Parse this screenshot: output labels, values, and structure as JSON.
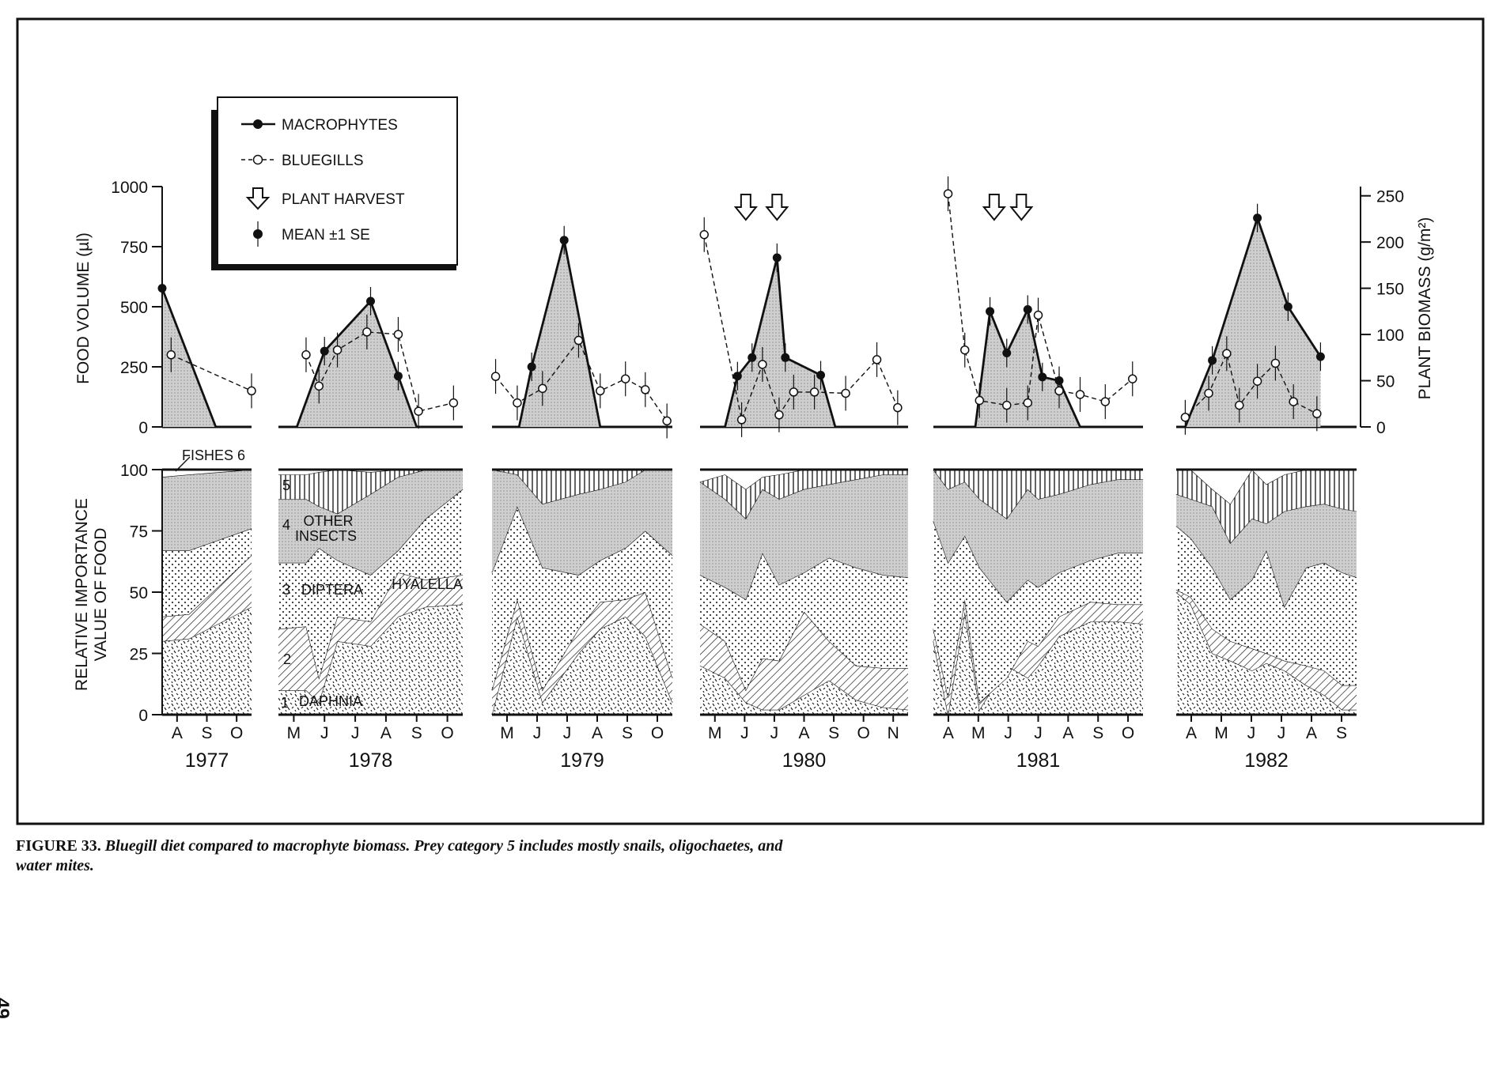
{
  "figure": {
    "caption_label": "FIGURE 33.",
    "caption_text": "Bluegill diet compared to macrophyte biomass. Prey category 5 includes mostly snails, oligochaetes, and water mites.",
    "page_number": "49"
  },
  "chart_data": [
    {
      "type": "line",
      "panel": "upper",
      "left_axis_label": "FOOD VOLUME (µl)",
      "right_axis_label": "PLANT BIOMASS (g/m²)",
      "left_ticks": [
        "0",
        "250",
        "500",
        "750",
        "1000"
      ],
      "right_ticks": [
        "0",
        "50",
        "100",
        "150",
        "200",
        "250"
      ],
      "left_ylim": [
        0,
        1000
      ],
      "right_ylim": [
        0,
        260
      ],
      "legend": {
        "macrophytes": "MACROPHYTES",
        "bluegills": "BLUEGILLS",
        "harvest": "PLANT HARVEST",
        "se": "MEAN ±1 SE"
      },
      "legend_position": "top-left",
      "series_names": [
        "MACROPHYTES",
        "BLUEGILLS"
      ],
      "harvest_marker_note": "arrows show plant harvest dates (1980, 1981)",
      "years": [
        {
          "year": "1977",
          "months": [
            "A",
            "S",
            "O"
          ],
          "macrophytes": [
            [
              0.0,
              150
            ],
            [
              0.6,
              0
            ],
            [
              1.0,
              0
            ]
          ],
          "bluegills": [
            [
              0.1,
              300
            ],
            [
              1.0,
              150
            ]
          ],
          "harvests": []
        },
        {
          "year": "1978",
          "months": [
            "M",
            "J",
            "J",
            "A",
            "S",
            "O"
          ],
          "macrophytes": [
            [
              0.1,
              0
            ],
            [
              0.25,
              82
            ],
            [
              0.5,
              136
            ],
            [
              0.65,
              55
            ],
            [
              0.75,
              0
            ]
          ],
          "bluegills": [
            [
              0.15,
              300
            ],
            [
              0.22,
              170
            ],
            [
              0.32,
              320
            ],
            [
              0.48,
              395
            ],
            [
              0.65,
              385
            ],
            [
              0.76,
              65
            ],
            [
              0.95,
              100
            ]
          ],
          "harvests": []
        },
        {
          "year": "1979",
          "months": [
            "M",
            "J",
            "J",
            "A",
            "S",
            "O"
          ],
          "macrophytes": [
            [
              0.15,
              0
            ],
            [
              0.22,
              65
            ],
            [
              0.4,
              202
            ],
            [
              0.6,
              0
            ]
          ],
          "bluegills": [
            [
              0.02,
              210
            ],
            [
              0.14,
              100
            ],
            [
              0.28,
              160
            ],
            [
              0.48,
              360
            ],
            [
              0.6,
              150
            ],
            [
              0.74,
              200
            ],
            [
              0.85,
              155
            ],
            [
              0.97,
              25
            ]
          ],
          "harvests": []
        },
        {
          "year": "1980",
          "months": [
            "M",
            "J",
            "J",
            "A",
            "S",
            "O",
            "N"
          ],
          "macrophytes": [
            [
              0.12,
              0
            ],
            [
              0.18,
              55
            ],
            [
              0.25,
              75
            ],
            [
              0.37,
              183
            ],
            [
              0.41,
              75
            ],
            [
              0.58,
              56
            ],
            [
              0.65,
              0
            ]
          ],
          "bluegills": [
            [
              0.02,
              800
            ],
            [
              0.2,
              30
            ],
            [
              0.3,
              260
            ],
            [
              0.38,
              50
            ],
            [
              0.45,
              145
            ],
            [
              0.55,
              145
            ],
            [
              0.7,
              140
            ],
            [
              0.85,
              280
            ],
            [
              0.95,
              80
            ]
          ],
          "harvests": [
            0.22,
            0.37
          ]
        },
        {
          "year": "1981",
          "months": [
            "A",
            "M",
            "J",
            "J",
            "A",
            "S",
            "O"
          ],
          "macrophytes": [
            [
              0.2,
              0
            ],
            [
              0.27,
              125
            ],
            [
              0.35,
              80
            ],
            [
              0.45,
              127
            ],
            [
              0.52,
              54
            ],
            [
              0.6,
              50
            ],
            [
              0.7,
              0
            ]
          ],
          "bluegills": [
            [
              0.07,
              970
            ],
            [
              0.15,
              320
            ],
            [
              0.22,
              110
            ],
            [
              0.35,
              90
            ],
            [
              0.45,
              100
            ],
            [
              0.5,
              465
            ],
            [
              0.6,
              150
            ],
            [
              0.7,
              135
            ],
            [
              0.82,
              105
            ],
            [
              0.95,
              200
            ]
          ],
          "harvests": [
            0.29,
            0.42
          ]
        },
        {
          "year": "1982",
          "months": [
            "A",
            "M",
            "J",
            "J",
            "A",
            "S"
          ],
          "macrophytes": [
            [
              0.05,
              0
            ],
            [
              0.2,
              72
            ],
            [
              0.45,
              226
            ],
            [
              0.62,
              130
            ],
            [
              0.8,
              76
            ]
          ],
          "bluegills": [
            [
              0.05,
              40
            ],
            [
              0.18,
              140
            ],
            [
              0.28,
              305
            ],
            [
              0.35,
              90
            ],
            [
              0.45,
              190
            ],
            [
              0.55,
              265
            ],
            [
              0.65,
              105
            ],
            [
              0.78,
              55
            ]
          ],
          "harvests": []
        }
      ]
    },
    {
      "type": "area",
      "panel": "lower",
      "y_axis_label": "RELATIVE IMPORTANCE VALUE OF FOOD",
      "ticks": [
        "0",
        "25",
        "50",
        "75",
        "100"
      ],
      "ylim": [
        0,
        100
      ],
      "category_labels": {
        "daphnia": "DAPHNIA",
        "cat1": "1",
        "cat2": "2",
        "cat3": "3",
        "diptera": "DIPTERA",
        "hyalella": "HYALELLA",
        "cat4": "4",
        "other_insects_1": "OTHER",
        "other_insects_2": "INSECTS",
        "cat5": "5",
        "fishes": "FISHES 6"
      },
      "years": [
        {
          "year": "1977",
          "x": [
            0,
            0.3,
            1
          ],
          "daphnia": [
            30,
            31,
            44
          ],
          "hyalella": [
            40,
            41,
            65
          ],
          "diptera": [
            67,
            67,
            76
          ],
          "other_insects": [
            97,
            98,
            100
          ],
          "cat5": [
            97,
            98,
            100
          ],
          "fishes": [
            100,
            100,
            100
          ]
        },
        {
          "year": "1978",
          "x": [
            0,
            0.15,
            0.22,
            0.32,
            0.5,
            0.65,
            0.8,
            1
          ],
          "daphnia": [
            10,
            10,
            5,
            30,
            28,
            40,
            44,
            45
          ],
          "hyalella": [
            35,
            36,
            15,
            40,
            38,
            58,
            55,
            57
          ],
          "diptera": [
            62,
            62,
            68,
            63,
            57,
            67,
            80,
            92
          ],
          "other_insects": [
            88,
            88,
            85,
            82,
            90,
            97,
            100,
            100
          ],
          "cat5": [
            98,
            98,
            99,
            100,
            99,
            100,
            100,
            100
          ],
          "fishes": [
            100,
            100,
            100,
            100,
            100,
            100,
            100,
            100
          ]
        },
        {
          "year": "1979",
          "x": [
            0,
            0.14,
            0.28,
            0.48,
            0.6,
            0.74,
            0.85,
            1
          ],
          "daphnia": [
            0,
            40,
            5,
            25,
            35,
            40,
            32,
            5
          ],
          "hyalella": [
            10,
            47,
            10,
            35,
            46,
            47,
            50,
            15
          ],
          "diptera": [
            58,
            85,
            60,
            57,
            63,
            68,
            75,
            65
          ],
          "other_insects": [
            100,
            98,
            86,
            90,
            92,
            95,
            100,
            100
          ],
          "cat5": [
            100,
            100,
            100,
            100,
            100,
            100,
            100,
            100
          ],
          "fishes": [
            100,
            100,
            100,
            100,
            100,
            100,
            100,
            100
          ]
        },
        {
          "year": "1980",
          "x": [
            0,
            0.12,
            0.22,
            0.3,
            0.38,
            0.5,
            0.62,
            0.75,
            0.88,
            1
          ],
          "daphnia": [
            20,
            15,
            5,
            2,
            2,
            8,
            14,
            6,
            3,
            2
          ],
          "hyalella": [
            37,
            30,
            10,
            23,
            22,
            42,
            30,
            20,
            19,
            19
          ],
          "diptera": [
            57,
            52,
            47,
            66,
            53,
            58,
            64,
            60,
            57,
            56
          ],
          "other_insects": [
            95,
            88,
            80,
            92,
            88,
            92,
            94,
            96,
            98,
            98
          ],
          "cat5": [
            95,
            98,
            92,
            97,
            98,
            100,
            100,
            100,
            100,
            100
          ],
          "fishes": [
            100,
            100,
            100,
            100,
            100,
            100,
            100,
            100,
            100,
            100
          ]
        },
        {
          "year": "1981",
          "x": [
            0,
            0.07,
            0.15,
            0.22,
            0.35,
            0.45,
            0.5,
            0.6,
            0.75,
            0.88,
            1
          ],
          "daphnia": [
            30,
            0,
            42,
            2,
            20,
            15,
            20,
            32,
            38,
            38,
            37
          ],
          "hyalella": [
            35,
            7,
            47,
            5,
            15,
            30,
            28,
            40,
            46,
            45,
            45
          ],
          "diptera": [
            79,
            62,
            73,
            60,
            46,
            55,
            52,
            58,
            63,
            66,
            66
          ],
          "other_insects": [
            100,
            92,
            95,
            88,
            80,
            92,
            88,
            90,
            94,
            96,
            96
          ],
          "cat5": [
            100,
            100,
            100,
            100,
            100,
            100,
            100,
            100,
            100,
            100,
            100
          ],
          "fishes": [
            100,
            100,
            100,
            100,
            100,
            100,
            100,
            100,
            100,
            100,
            100
          ]
        },
        {
          "year": "1982",
          "x": [
            0,
            0.08,
            0.2,
            0.3,
            0.42,
            0.5,
            0.6,
            0.72,
            0.82,
            0.92,
            1
          ],
          "daphnia": [
            50,
            45,
            25,
            22,
            18,
            21,
            18,
            12,
            8,
            2,
            2
          ],
          "hyalella": [
            51,
            48,
            35,
            30,
            27,
            25,
            22,
            20,
            18,
            12,
            12
          ],
          "diptera": [
            77,
            72,
            60,
            47,
            55,
            67,
            44,
            60,
            62,
            58,
            56
          ],
          "other_insects": [
            90,
            88,
            85,
            70,
            80,
            78,
            83,
            85,
            86,
            84,
            83
          ],
          "cat5": [
            100,
            100,
            92,
            86,
            100,
            94,
            98,
            100,
            100,
            100,
            100
          ],
          "fishes": [
            100,
            100,
            100,
            100,
            100,
            100,
            100,
            100,
            100,
            100,
            100
          ]
        }
      ]
    }
  ],
  "colors": {
    "ink": "#111111",
    "shade": "#d2d2d2",
    "paper": "#ffffff"
  }
}
